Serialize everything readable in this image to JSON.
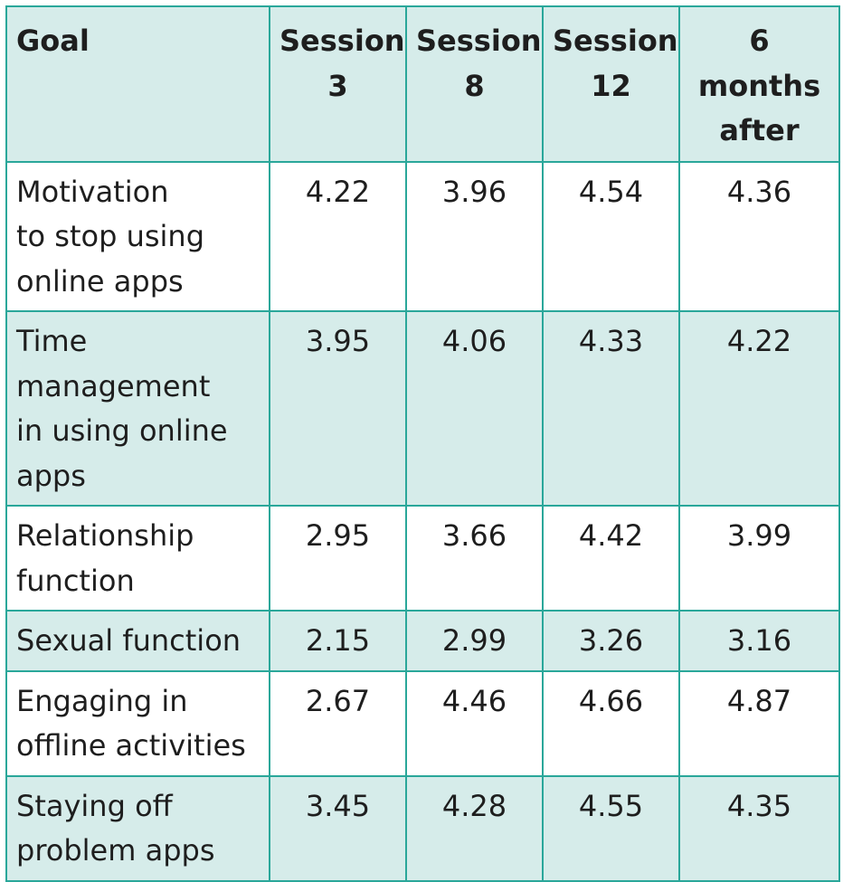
{
  "table": {
    "headers": [
      "Goal",
      "Session\n3",
      "Session\n8",
      "Session\n12",
      "6 months\nafter"
    ],
    "rows": [
      {
        "goal": "Motivation\nto stop using\nonline apps",
        "values": [
          "4.22",
          "3.96",
          "4.54",
          "4.36"
        ]
      },
      {
        "goal": "Time\nmanagement\nin using online\napps",
        "values": [
          "3.95",
          "4.06",
          "4.33",
          "4.22"
        ]
      },
      {
        "goal": "Relationship\nfunction",
        "values": [
          "2.95",
          "3.66",
          "4.42",
          "3.99"
        ]
      },
      {
        "goal": "Sexual function",
        "values": [
          "2.15",
          "2.99",
          "3.26",
          "3.16"
        ]
      },
      {
        "goal": "Engaging in\noffline activities",
        "values": [
          "2.67",
          "4.46",
          "4.66",
          "4.87"
        ]
      },
      {
        "goal": "Staying off\nproblem apps",
        "values": [
          "3.45",
          "4.28",
          "4.55",
          "4.35"
        ]
      }
    ]
  },
  "colors": {
    "border": "#2aa79a",
    "tint": "#d6ecea",
    "plain": "#ffffff",
    "text": "#1e1e1e"
  }
}
